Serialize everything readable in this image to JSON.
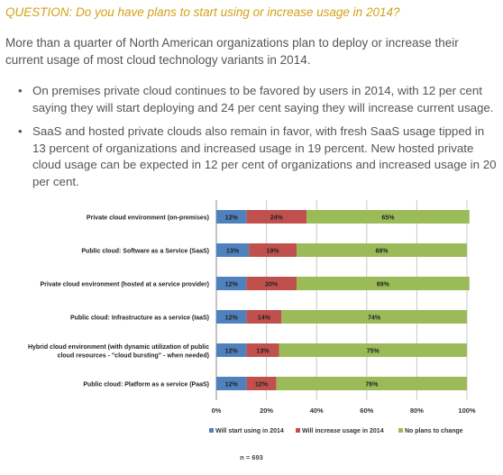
{
  "question": "QUESTION: Do you have plans to start using or increase usage in 2014?",
  "intro": "More than a quarter of North American organizations plan to deploy or increase their current usage of most cloud technology variants in 2014.",
  "bullets": [
    "On premises private cloud continues to be favored by users in 2014, with 12 per cent saying they will start deploying and 24 per cent saying they will increase current usage.",
    "SaaS and hosted private clouds also remain in favor, with fresh SaaS usage tipped in 13 percent of organizations and increased usage in 19 percent. New hosted private cloud usage can be expected in 12 per cent of organizations and increased usage in 20 per cent."
  ],
  "footnote": "n = 693",
  "chart_data": {
    "type": "bar",
    "orientation": "horizontal",
    "stacked": true,
    "categories": [
      "Private cloud environment (on-premises)",
      "Public cloud: Software as a Service (SaaS)",
      "Private cloud environment (hosted at a service provider)",
      "Public cloud: Infrastructure as a service (IaaS)",
      "Hybrid cloud environment (with dynamic utilization of public cloud resources - \"cloud bursting\" - when needed)",
      "Public cloud: Platform as a service (PaaS)"
    ],
    "category_lines": [
      [
        "Private cloud environment (on-premises)"
      ],
      [
        "Public cloud: Software as a Service (SaaS)"
      ],
      [
        "Private cloud environment (hosted at a service provider)"
      ],
      [
        "Public cloud: Infrastructure as a service (IaaS)"
      ],
      [
        "Hybrid cloud environment (with dynamic utilization of public",
        "cloud resources - \"cloud bursting\" - when needed)"
      ],
      [
        "Public cloud: Platform as a service (PaaS)"
      ]
    ],
    "series": [
      {
        "name": "Will start using in 2014",
        "color": "#4f81bd",
        "values": [
          12,
          13,
          12,
          12,
          12,
          12
        ]
      },
      {
        "name": "Will increase usage in 2014",
        "color": "#c0504d",
        "values": [
          24,
          19,
          20,
          14,
          13,
          12
        ]
      },
      {
        "name": "No plans to change",
        "color": "#9bbb59",
        "values": [
          65,
          68,
          69,
          74,
          75,
          76
        ]
      }
    ],
    "xlim": [
      0,
      100
    ],
    "xticks": [
      "0%",
      "20%",
      "40%",
      "60%",
      "80%",
      "100%"
    ],
    "grid": true,
    "legend_position": "bottom"
  }
}
